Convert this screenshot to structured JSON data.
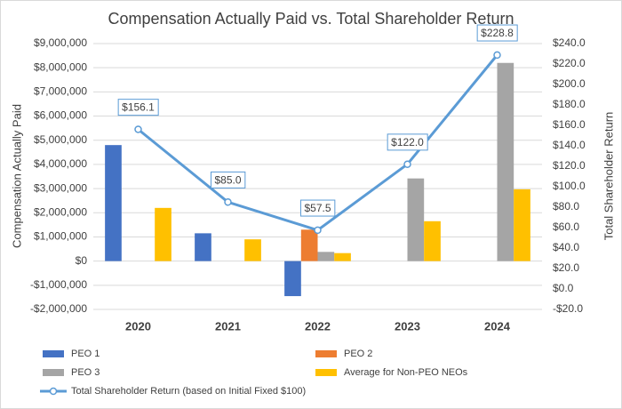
{
  "chart_data": {
    "type": "bar",
    "title": "Compensation Actually Paid vs. Total Shareholder Return",
    "y_label": "Compensation Actually Paid",
    "y2_label": "Total Shareholder Return",
    "categories": [
      "2020",
      "2021",
      "2022",
      "2023",
      "2024"
    ],
    "series": [
      {
        "name": "PEO 1",
        "color": "#4472c4",
        "values": [
          4800000,
          1150000,
          -1450000,
          null,
          null
        ]
      },
      {
        "name": "PEO 2",
        "color": "#ed7d31",
        "values": [
          null,
          null,
          1300000,
          null,
          null
        ]
      },
      {
        "name": "PEO 3",
        "color": "#a5a5a5",
        "values": [
          null,
          null,
          380000,
          3420000,
          8200000
        ]
      },
      {
        "name": "Average for Non-PEO NEOs",
        "color": "#ffc000",
        "values": [
          2200000,
          900000,
          330000,
          1650000,
          2970000
        ]
      },
      {
        "name": "Total Shareholder Return (based on Initial Fixed $100)",
        "color": "#5b9bd5",
        "type": "line",
        "axis": "y2",
        "values": [
          156.1,
          85.0,
          57.5,
          122.0,
          228.8
        ],
        "value_labels": [
          "$156.1",
          "$85.0",
          "$57.5",
          "$122.0",
          "$228.8"
        ]
      }
    ],
    "ylim": [
      -2000000,
      9000000
    ],
    "yticks": [
      {
        "value": -2000000,
        "label": "-$2,000,000"
      },
      {
        "value": -1000000,
        "label": "-$1,000,000"
      },
      {
        "value": 0,
        "label": "$0"
      },
      {
        "value": 1000000,
        "label": "$1,000,000"
      },
      {
        "value": 2000000,
        "label": "$2,000,000"
      },
      {
        "value": 3000000,
        "label": "$3,000,000"
      },
      {
        "value": 4000000,
        "label": "$4,000,000"
      },
      {
        "value": 5000000,
        "label": "$5,000,000"
      },
      {
        "value": 6000000,
        "label": "$6,000,000"
      },
      {
        "value": 7000000,
        "label": "$7,000,000"
      },
      {
        "value": 8000000,
        "label": "$8,000,000"
      },
      {
        "value": 9000000,
        "label": "$9,000,000"
      }
    ],
    "y2lim": [
      -20,
      240
    ],
    "y2ticks": [
      {
        "value": -20,
        "label": "-$20.0"
      },
      {
        "value": 0,
        "label": "$0.0"
      },
      {
        "value": 20,
        "label": "$20.0"
      },
      {
        "value": 40,
        "label": "$40.0"
      },
      {
        "value": 60,
        "label": "$60.0"
      },
      {
        "value": 80,
        "label": "$80.0"
      },
      {
        "value": 100,
        "label": "$100.0"
      },
      {
        "value": 120,
        "label": "$120.0"
      },
      {
        "value": 140,
        "label": "$140.0"
      },
      {
        "value": 160,
        "label": "$160.0"
      },
      {
        "value": 180,
        "label": "$180.0"
      },
      {
        "value": 200,
        "label": "$200.0"
      },
      {
        "value": 220,
        "label": "$220.0"
      },
      {
        "value": 240,
        "label": "$240.0"
      }
    ],
    "grid": true
  }
}
